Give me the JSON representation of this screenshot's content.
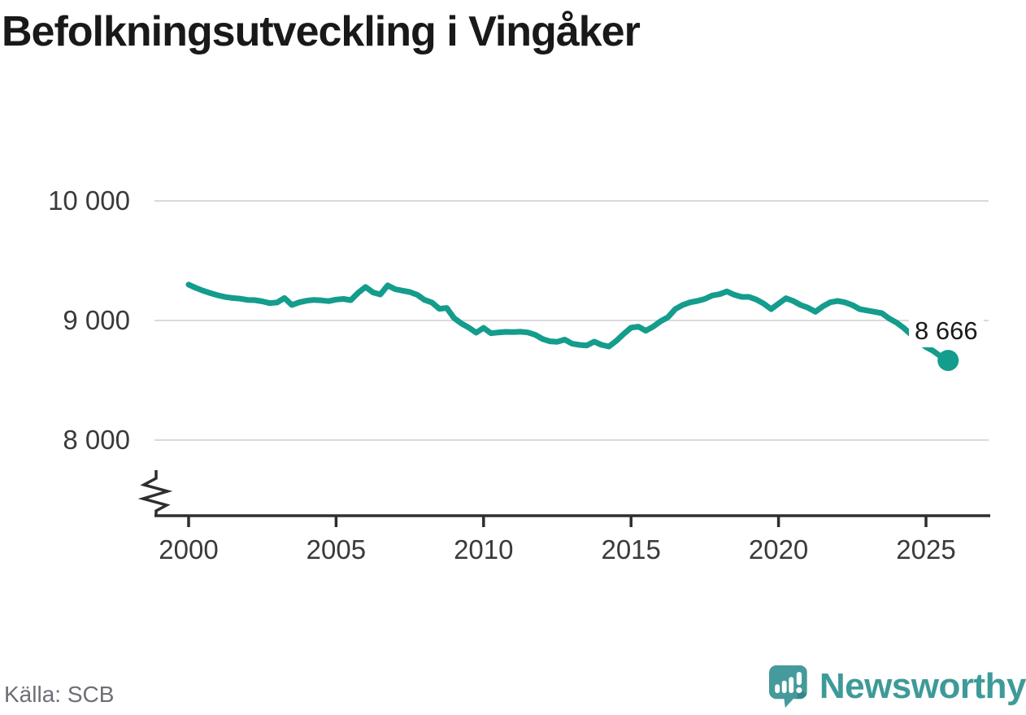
{
  "title": "Befolkningsutveckling i Vingåker",
  "source": "Källa: SCB",
  "branding": {
    "logo_text": "Newsworthy",
    "logo_icon": "newsworthy-speech-bubble-chart-icon"
  },
  "colors": {
    "line": "#149c8c",
    "end_dot": "#149c8c",
    "grid": "#dadada",
    "axis": "#2e2e2e",
    "title_text": "#191919",
    "tick_text": "#3a3a3a",
    "source_text": "#6e6e78",
    "brand_teal": "#3e9a99",
    "end_label_text": "#1a1a1a"
  },
  "end_label": "8 666",
  "chart_data": {
    "type": "line",
    "title": "Befolkningsutveckling i Vingåker",
    "xlabel": "",
    "ylabel": "",
    "x_start": 2000,
    "x_step": 0.25,
    "x_unit": "year (quarterly points)",
    "x_ticks": [
      2000,
      2005,
      2010,
      2015,
      2020,
      2025
    ],
    "y_ticks": [
      {
        "label": "10 000",
        "value": 10000
      },
      {
        "label": "9 000",
        "value": 9000
      },
      {
        "label": "8 000",
        "value": 8000
      }
    ],
    "ylim": [
      7600,
      10150
    ],
    "axis_break_at_bottom": true,
    "grid": "horizontal",
    "legend": "none",
    "last_value": 8666,
    "last_point_label": "8 666",
    "values": [
      9300,
      9272,
      9248,
      9228,
      9210,
      9196,
      9188,
      9182,
      9172,
      9170,
      9160,
      9145,
      9150,
      9188,
      9130,
      9152,
      9165,
      9172,
      9168,
      9162,
      9175,
      9180,
      9170,
      9232,
      9280,
      9235,
      9218,
      9293,
      9262,
      9250,
      9238,
      9215,
      9172,
      9150,
      9098,
      9105,
      9020,
      8975,
      8940,
      8898,
      8938,
      8893,
      8900,
      8905,
      8903,
      8906,
      8900,
      8880,
      8845,
      8826,
      8822,
      8840,
      8807,
      8796,
      8791,
      8823,
      8796,
      8782,
      8830,
      8887,
      8940,
      8948,
      8914,
      8948,
      8993,
      9027,
      9095,
      9130,
      9152,
      9163,
      9180,
      9209,
      9220,
      9243,
      9215,
      9197,
      9197,
      9175,
      9141,
      9095,
      9141,
      9186,
      9163,
      9129,
      9107,
      9073,
      9118,
      9152,
      9163,
      9152,
      9129,
      9095,
      9084,
      9073,
      9061,
      9016,
      8982,
      8937,
      8880,
      8823,
      8778,
      8744,
      8699,
      8666
    ]
  }
}
